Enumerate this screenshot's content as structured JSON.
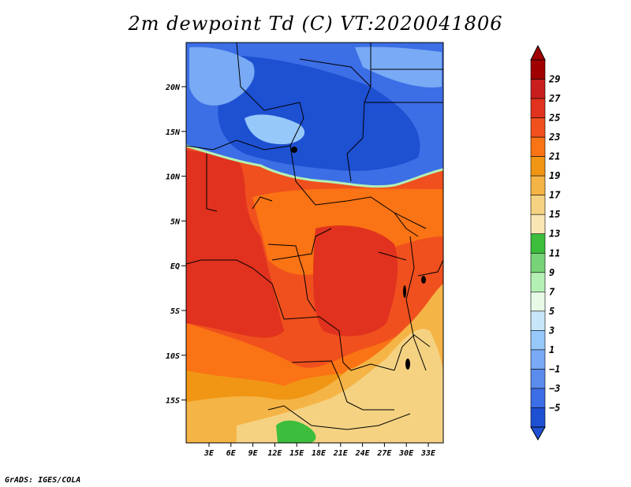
{
  "title": "2m dewpoint Td (C) VT:2020041806",
  "credit": "GrADS: IGES/COLA",
  "map": {
    "lon_range": [
      0,
      35
    ],
    "lat_range": [
      -20,
      24
    ],
    "lat_ticks": [
      "20N",
      "15N",
      "10N",
      "5N",
      "EQ",
      "5S",
      "10S",
      "15S"
    ],
    "lon_ticks": [
      "3E",
      "6E",
      "9E",
      "12E",
      "15E",
      "18E",
      "21E",
      "24E",
      "27E",
      "30E",
      "33E"
    ]
  },
  "colorbar": {
    "labels": [
      "29",
      "27",
      "25",
      "23",
      "21",
      "19",
      "17",
      "15",
      "13",
      "11",
      "9",
      "7",
      "5",
      "3",
      "1",
      "−1",
      "−3",
      "−5"
    ],
    "colors": [
      "#a00000",
      "#c81e1e",
      "#e0321e",
      "#f0501e",
      "#fa7314",
      "#f09614",
      "#f5b446",
      "#f5d282",
      "#fae6b4",
      "#3cbe3c",
      "#78d278",
      "#b4f0b4",
      "#e6fae6",
      "#c8e6fa",
      "#96c8fa",
      "#78aaf5",
      "#5a8ceb",
      "#3c6ee6",
      "#1e50d2"
    ]
  }
}
